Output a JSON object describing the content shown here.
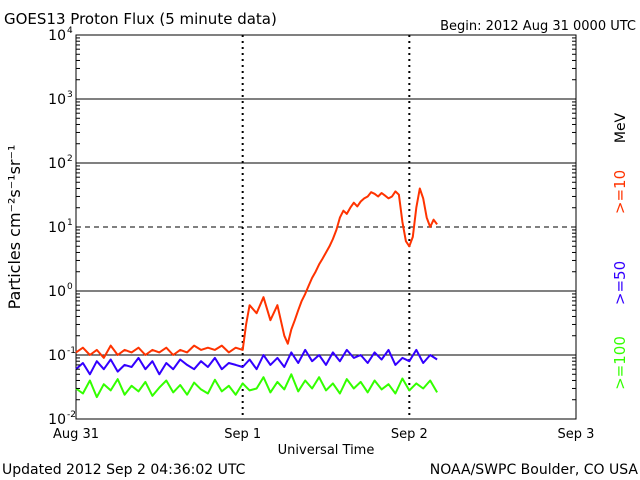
{
  "chart_data": {
    "type": "line",
    "title": "GOES13 Proton Flux (5 minute data)",
    "begin_label": "Begin: 2012 Aug 31 0000 UTC",
    "ylabel": "Particles cm⁻²s⁻¹sr⁻¹",
    "xlabel": "Universal Time",
    "y_scale": "log",
    "ylim": [
      0.01,
      10000
    ],
    "y_ticks": [
      {
        "value": 10000,
        "base": "10",
        "exp": "4"
      },
      {
        "value": 1000,
        "base": "10",
        "exp": "3"
      },
      {
        "value": 100,
        "base": "10",
        "exp": "2"
      },
      {
        "value": 10,
        "base": "10",
        "exp": "1"
      },
      {
        "value": 1,
        "base": "10",
        "exp": "0"
      },
      {
        "value": 0.1,
        "base": "10",
        "exp": "-1"
      },
      {
        "value": 0.01,
        "base": "10",
        "exp": "-2"
      }
    ],
    "x_unit": "hours since 2012 Aug 31 0000 UTC",
    "xlim": [
      0,
      72
    ],
    "x_ticks": [
      {
        "value": 0,
        "label": "Aug 31"
      },
      {
        "value": 24,
        "label": "Sep 1"
      },
      {
        "value": 48,
        "label": "Sep 2"
      },
      {
        "value": 72,
        "label": "Sep 3"
      }
    ],
    "threshold": 10,
    "unit_label": "MeV",
    "series": [
      {
        "name": ">=10",
        "color": "#ff3300",
        "x": [
          0,
          1,
          2,
          3,
          4,
          5,
          6,
          7,
          8,
          9,
          10,
          11,
          12,
          13,
          14,
          15,
          16,
          17,
          18,
          19,
          20,
          21,
          22,
          23,
          24,
          24.5,
          25,
          26,
          27,
          28,
          29,
          30,
          30.5,
          31,
          31.5,
          32,
          32.5,
          33,
          33.5,
          34,
          34.5,
          35,
          35.5,
          36,
          36.5,
          37,
          37.5,
          38,
          38.5,
          39,
          39.5,
          40,
          40.5,
          41,
          41.5,
          42,
          42.5,
          43,
          43.5,
          44,
          44.5,
          45,
          45.5,
          46,
          46.5,
          47,
          47.5,
          48,
          48.5,
          49,
          49.5,
          50,
          50.5,
          51,
          51.5,
          52
        ],
        "values": [
          0.11,
          0.13,
          0.1,
          0.12,
          0.09,
          0.14,
          0.1,
          0.12,
          0.11,
          0.13,
          0.1,
          0.12,
          0.11,
          0.13,
          0.1,
          0.12,
          0.11,
          0.14,
          0.12,
          0.13,
          0.12,
          0.14,
          0.11,
          0.13,
          0.12,
          0.3,
          0.6,
          0.45,
          0.8,
          0.35,
          0.6,
          0.2,
          0.15,
          0.25,
          0.35,
          0.5,
          0.7,
          0.9,
          1.2,
          1.6,
          2.0,
          2.6,
          3.2,
          4.0,
          5.0,
          6.5,
          9.0,
          14,
          18,
          16,
          20,
          24,
          21,
          25,
          28,
          30,
          35,
          33,
          30,
          34,
          31,
          28,
          30,
          36,
          32,
          12,
          6,
          5,
          7,
          20,
          40,
          28,
          14,
          10,
          13,
          11
        ]
      },
      {
        "name": ">=50",
        "color": "#3300ff",
        "x": [
          0,
          1,
          2,
          3,
          4,
          5,
          6,
          7,
          8,
          9,
          10,
          11,
          12,
          13,
          14,
          15,
          16,
          17,
          18,
          19,
          20,
          21,
          22,
          23,
          24,
          25,
          26,
          27,
          28,
          29,
          30,
          31,
          32,
          33,
          34,
          35,
          36,
          37,
          38,
          39,
          40,
          41,
          42,
          43,
          44,
          45,
          46,
          47,
          48,
          49,
          50,
          51,
          52
        ],
        "values": [
          0.06,
          0.075,
          0.05,
          0.08,
          0.06,
          0.085,
          0.055,
          0.07,
          0.065,
          0.09,
          0.06,
          0.08,
          0.05,
          0.075,
          0.06,
          0.085,
          0.07,
          0.06,
          0.08,
          0.065,
          0.09,
          0.06,
          0.075,
          0.07,
          0.065,
          0.085,
          0.06,
          0.1,
          0.07,
          0.09,
          0.065,
          0.11,
          0.075,
          0.12,
          0.08,
          0.1,
          0.07,
          0.11,
          0.08,
          0.12,
          0.09,
          0.1,
          0.075,
          0.11,
          0.085,
          0.12,
          0.07,
          0.09,
          0.08,
          0.12,
          0.075,
          0.1,
          0.085
        ]
      },
      {
        "name": ">=100",
        "color": "#33ff00",
        "x": [
          0,
          1,
          2,
          3,
          4,
          5,
          6,
          7,
          8,
          9,
          10,
          11,
          12,
          13,
          14,
          15,
          16,
          17,
          18,
          19,
          20,
          21,
          22,
          23,
          24,
          25,
          26,
          27,
          28,
          29,
          30,
          31,
          32,
          33,
          34,
          35,
          36,
          37,
          38,
          39,
          40,
          41,
          42,
          43,
          44,
          45,
          46,
          47,
          48,
          49,
          50,
          51,
          52
        ],
        "values": [
          0.03,
          0.025,
          0.04,
          0.022,
          0.035,
          0.028,
          0.042,
          0.024,
          0.033,
          0.027,
          0.038,
          0.023,
          0.031,
          0.04,
          0.026,
          0.034,
          0.024,
          0.037,
          0.029,
          0.025,
          0.041,
          0.027,
          0.033,
          0.024,
          0.036,
          0.028,
          0.03,
          0.045,
          0.026,
          0.038,
          0.029,
          0.05,
          0.027,
          0.04,
          0.03,
          0.045,
          0.028,
          0.036,
          0.025,
          0.042,
          0.03,
          0.038,
          0.026,
          0.04,
          0.029,
          0.035,
          0.025,
          0.043,
          0.028,
          0.036,
          0.03,
          0.04,
          0.026
        ]
      }
    ]
  },
  "footer": {
    "updated": "Updated 2012 Sep  2 04:36:02 UTC",
    "source": "NOAA/SWPC Boulder, CO USA"
  }
}
